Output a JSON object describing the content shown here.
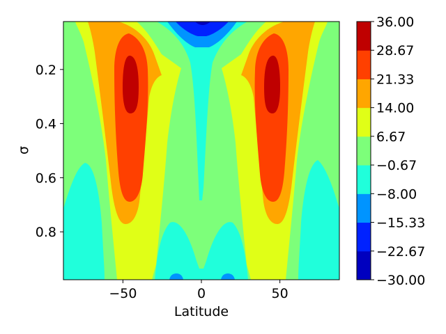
{
  "chart_data": {
    "type": "contourf",
    "title": "",
    "xlabel": "Latitude",
    "ylabel": "σ",
    "xlim": [
      -87.9,
      87.9
    ],
    "ylim": [
      0.977,
      0.023
    ],
    "y_inverted": true,
    "xticks": [
      -50,
      0,
      50
    ],
    "xtick_labels": [
      "−50",
      "0",
      "50"
    ],
    "yticks": [
      0.2,
      0.4,
      0.6,
      0.8
    ],
    "ytick_labels": [
      "0.2",
      "0.4",
      "0.6",
      "0.8"
    ],
    "grid": false,
    "legend": "colorbar-right",
    "levels": [
      -30.0,
      -22.67,
      -15.33,
      -8.0,
      -0.67,
      6.67,
      14.0,
      21.33,
      28.67,
      36.0
    ],
    "level_labels": [
      "−30.00",
      "−22.67",
      "−15.33",
      "−8.00",
      "−0.67",
      "6.67",
      "14.00",
      "21.33",
      "28.67",
      "36.00"
    ],
    "level_colors": [
      "#0000bf",
      "#0022ff",
      "#0094ff",
      "#20ffdb",
      "#7dff7a",
      "#e0ff17",
      "#ffa600",
      "#ff4000",
      "#bf0000"
    ],
    "features": {
      "jets": [
        {
          "lat": -45,
          "sigma": 0.25,
          "peak": 33
        },
        {
          "lat": 45,
          "sigma": 0.25,
          "peak": 33
        }
      ],
      "equatorial_easterly_top": {
        "lat": 0,
        "sigma": 0.0,
        "min": -24
      },
      "surface_easterlies": [
        {
          "lat": -75,
          "sigma": 0.85
        },
        {
          "lat": -12,
          "sigma": 0.9
        },
        {
          "lat": 12,
          "sigma": 0.9
        },
        {
          "lat": 75,
          "sigma": 0.85
        }
      ]
    }
  }
}
